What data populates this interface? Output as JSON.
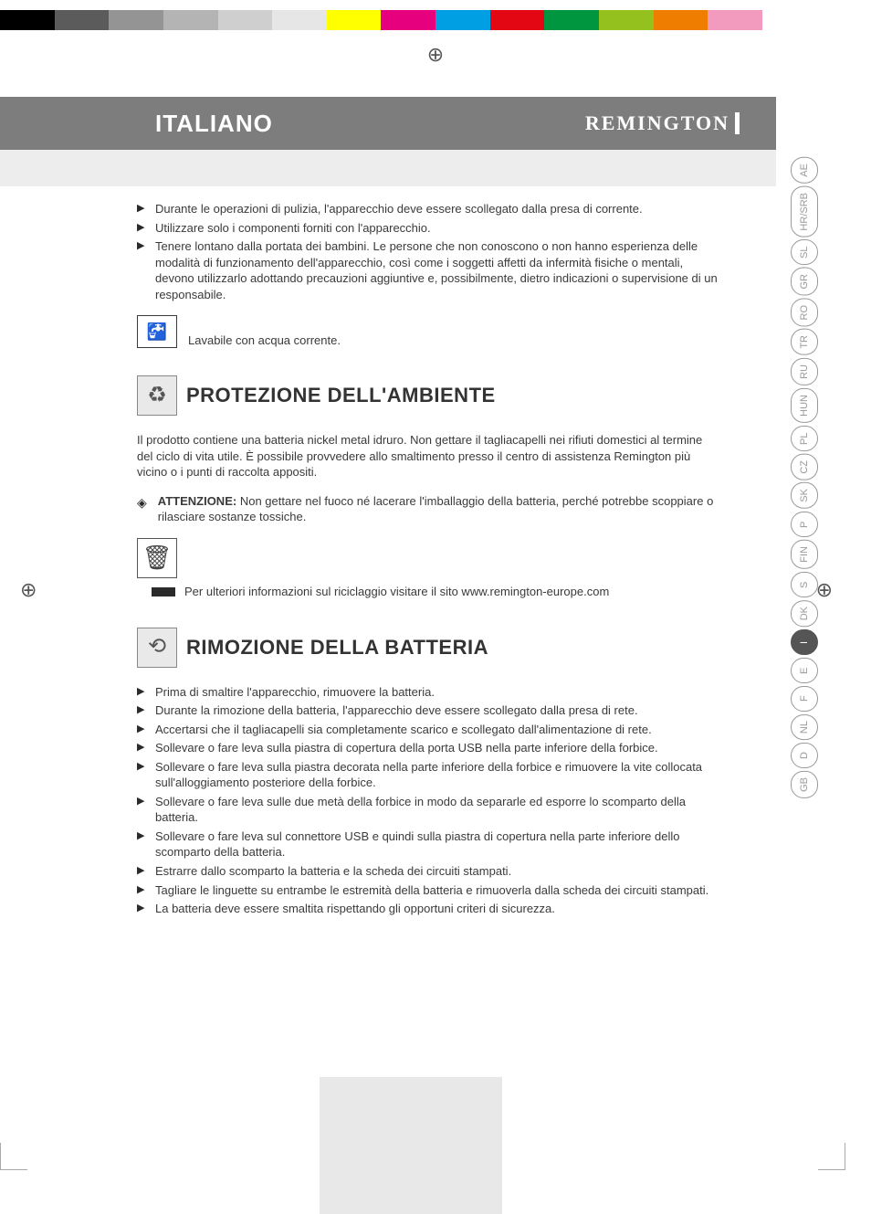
{
  "color_bar": [
    "#000000",
    "#5b5b5b",
    "#949494",
    "#b4b4b4",
    "#cfcfcf",
    "#e6e6e6",
    "#ffff00",
    "#e6007e",
    "#009fe3",
    "#e30613",
    "#009640",
    "#95c11f",
    "#ef7d00",
    "#f39abf",
    "#ffffff",
    "#ffffff"
  ],
  "header": {
    "language": "ITALIANO",
    "brand": "REMINGTON"
  },
  "intro_bullets": [
    "Durante le operazioni di pulizia, l'apparecchio deve essere scollegato dalla presa di corrente.",
    "Utilizzare solo i componenti forniti con l'apparecchio.",
    "Tenere lontano dalla portata dei bambini. Le persone che non conoscono o non hanno esperienza delle modalità di funzionamento dell'apparecchio, così come i soggetti affetti da infermità fisiche o mentali, devono utilizzarlo adottando precauzioni aggiuntive e, possibilmente, dietro indicazioni o supervisione di un responsabile."
  ],
  "wash_line": "Lavabile con acqua corrente.",
  "section1": {
    "title": "PROTEZIONE DELL'AMBIENTE",
    "para": "Il prodotto contiene una batteria nickel metal idruro. Non gettare il tagliacapelli nei rifiuti domestici al termine del ciclo di vita utile. È possibile provvedere allo smaltimento presso il centro di assistenza Remington più vicino o i punti di raccolta appositi.",
    "attn_label": "ATTENZIONE:",
    "attn_text": "Non gettare nel fuoco né lacerare l'imballaggio della batteria, perché potrebbe scoppiare o rilasciare sostanze tossiche.",
    "recycle_info": "Per ulteriori informazioni sul riciclaggio visitare il sito www.remington-europe.com"
  },
  "section2": {
    "title": "RIMOZIONE DELLA BATTERIA",
    "bullets": [
      "Prima di smaltire l'apparecchio, rimuovere la batteria.",
      "Durante la rimozione della batteria, l'apparecchio deve essere scollegato dalla presa di rete.",
      "Accertarsi che il tagliacapelli sia completamente scarico e scollegato dall'alimentazione di rete.",
      "Sollevare o fare leva sulla piastra di copertura della porta USB nella parte inferiore della forbice.",
      "Sollevare o fare leva sulla piastra decorata nella parte inferiore della forbice e rimuovere la vite collocata sull'alloggiamento posteriore della forbice.",
      "Sollevare o fare leva sulle due metà della forbice in modo da separarle ed esporre lo scomparto della batteria.",
      "Sollevare o fare leva sul connettore USB e quindi sulla piastra di copertura nella parte inferiore dello scomparto della batteria.",
      "Estrarre dallo scomparto la batteria e la scheda dei circuiti stampati.",
      "Tagliare le linguette su entrambe le estremità della batteria e rimuoverla dalla scheda dei circuiti stampati.",
      "La batteria deve essere smaltita rispettando gli opportuni criteri di sicurezza."
    ]
  },
  "tabs": [
    "GB",
    "D",
    "NL",
    "F",
    "E",
    "I",
    "DK",
    "S",
    "FIN",
    "P",
    "SK",
    "CZ",
    "PL",
    "HUN",
    "RU",
    "TR",
    "RO",
    "GR",
    "SL",
    "HR/SRB",
    "AE"
  ],
  "active_tab": "I",
  "icons": {
    "tap": "🚰",
    "recycle": "♻",
    "bin": "🗑",
    "battery": "⟲",
    "warn": "◈"
  }
}
